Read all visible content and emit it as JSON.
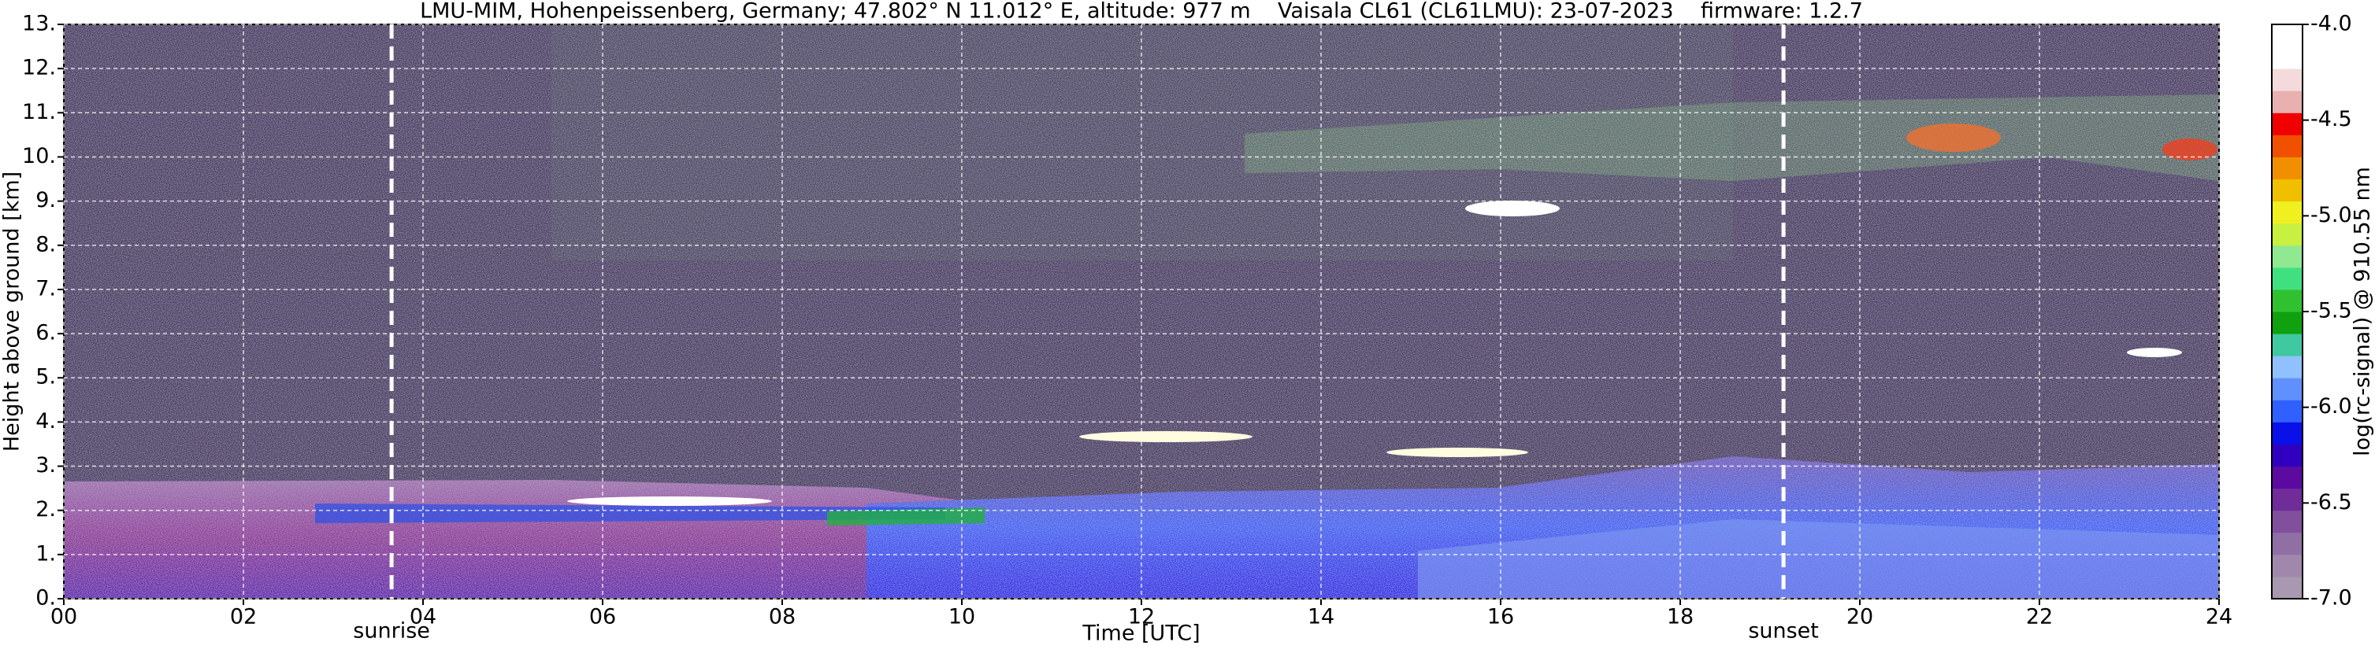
{
  "chart_data": {
    "type": "heatmap",
    "title": "LMU-MIM, Hohenpeissenberg, Germany; 47.802° N 11.012° E, altitude: 977 m    Vaisala CL61 (CL61LMU): 23-07-2023    firmware: 1.2.7",
    "x_label": "Time [UTC]",
    "y_label": "Height above ground [km]",
    "xlim": [
      0,
      24
    ],
    "xticks": [
      {
        "value": 0,
        "label": "00"
      },
      {
        "value": 2,
        "label": "02"
      },
      {
        "value": 4,
        "label": "04"
      },
      {
        "value": 6,
        "label": "06"
      },
      {
        "value": 8,
        "label": "08"
      },
      10,
      12,
      14,
      16,
      18,
      20,
      22,
      24
    ],
    "ylim": [
      0,
      13
    ],
    "yticks": [
      {
        "value": 0,
        "label": "0."
      },
      {
        "value": 1,
        "label": "1."
      },
      {
        "value": 2,
        "label": "2."
      },
      {
        "value": 3,
        "label": "3."
      },
      {
        "value": 4,
        "label": "4."
      },
      {
        "value": 5,
        "label": "5."
      },
      {
        "value": 6,
        "label": "6."
      },
      {
        "value": 7,
        "label": "7."
      },
      {
        "value": 8,
        "label": "8."
      },
      {
        "value": 9,
        "label": "9."
      },
      {
        "value": 10,
        "label": "10."
      },
      {
        "value": 11,
        "label": "11."
      },
      {
        "value": 12,
        "label": "12."
      },
      {
        "value": 13,
        "label": "13."
      }
    ],
    "grid": true,
    "annotations": [
      {
        "text": "sunrise",
        "x": 3.65
      },
      {
        "text": "sunset",
        "x": 19.15
      }
    ],
    "colorbar": {
      "label": "log(rc-signal) @ 910.55 nm",
      "lim": [
        -7,
        -4
      ],
      "ticks": [
        {
          "value": -7,
          "label": "-7.0"
        },
        {
          "value": -6.5,
          "label": "-6.5"
        },
        {
          "value": -6,
          "label": "-6.0"
        },
        {
          "value": -5.5,
          "label": "-5.5"
        },
        {
          "value": -5,
          "label": "-5.0"
        },
        {
          "value": -4.5,
          "label": "-4.5"
        },
        {
          "value": -4,
          "label": "-4.0"
        }
      ],
      "colors": [
        "#a898b0",
        "#a088ac",
        "#9070a4",
        "#80509c",
        "#702c98",
        "#5c0aa0",
        "#3000c0",
        "#0a10e8",
        "#3060ff",
        "#6090ff",
        "#90c0ff",
        "#40c8a0",
        "#10a010",
        "#30c030",
        "#40e080",
        "#90e890",
        "#c8f040",
        "#f0f020",
        "#f0c000",
        "#f09000",
        "#f05000",
        "#f00000",
        "#e8b0b0",
        "#f4dada",
        "#ffffff",
        "#ffffff"
      ]
    }
  }
}
